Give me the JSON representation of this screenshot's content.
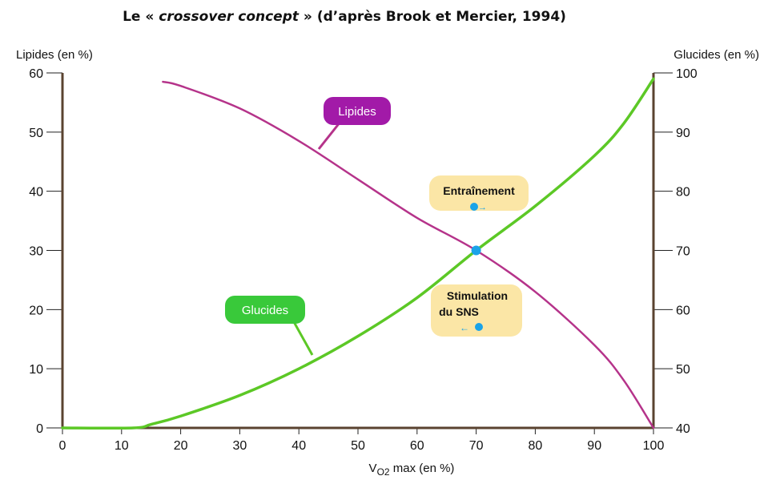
{
  "title": {
    "prefix": "Le «",
    "italic": "crossover concept",
    "suffix": "» (d’après Brook et Mercier, 1994)"
  },
  "colors": {
    "lipides": "#b5338a",
    "glucides": "#5cc826",
    "glucides_label": "#39c93a",
    "lipides_label": "#a21aa8",
    "marker": "#1aa3e8",
    "note_bg": "#fbe6a6",
    "axis": "#5a4330"
  },
  "chart_data": {
    "type": "line",
    "xlabel": "VO2 max (en %)",
    "ylabel_left": "Lipides (en %)",
    "ylabel_right": "Glucides (en %)",
    "xlim": [
      0,
      100
    ],
    "ylim_left": [
      0,
      60
    ],
    "ylim_right": [
      40,
      100
    ],
    "x_ticks": [
      0,
      10,
      20,
      30,
      40,
      50,
      60,
      70,
      80,
      90,
      100
    ],
    "y_ticks_left": [
      0,
      10,
      20,
      30,
      40,
      50,
      60
    ],
    "y_ticks_right": [
      40,
      50,
      60,
      70,
      80,
      90,
      100
    ],
    "series": [
      {
        "name": "Lipides",
        "axis": "left",
        "x": [
          17,
          20,
          30,
          40,
          50,
          60,
          70,
          80,
          90,
          95,
          100
        ],
        "y": [
          58.5,
          57.8,
          54,
          48.5,
          42,
          35.5,
          30,
          23,
          14,
          8,
          0
        ]
      },
      {
        "name": "Glucides",
        "axis": "left",
        "x": [
          0,
          12,
          15,
          20,
          30,
          40,
          50,
          60,
          70,
          80,
          90,
          95,
          100
        ],
        "y": [
          0,
          0,
          0.6,
          2,
          5.5,
          10,
          15.5,
          22,
          30,
          37.5,
          46,
          51.5,
          59
        ]
      }
    ],
    "annotations": {
      "crossover": {
        "x": 70,
        "y": 30
      },
      "entrainement": {
        "text": "Entraînement",
        "arrow": "→"
      },
      "stimulation": {
        "line1": "Stimulation",
        "line2": "du SNS",
        "arrow": "←"
      }
    }
  }
}
